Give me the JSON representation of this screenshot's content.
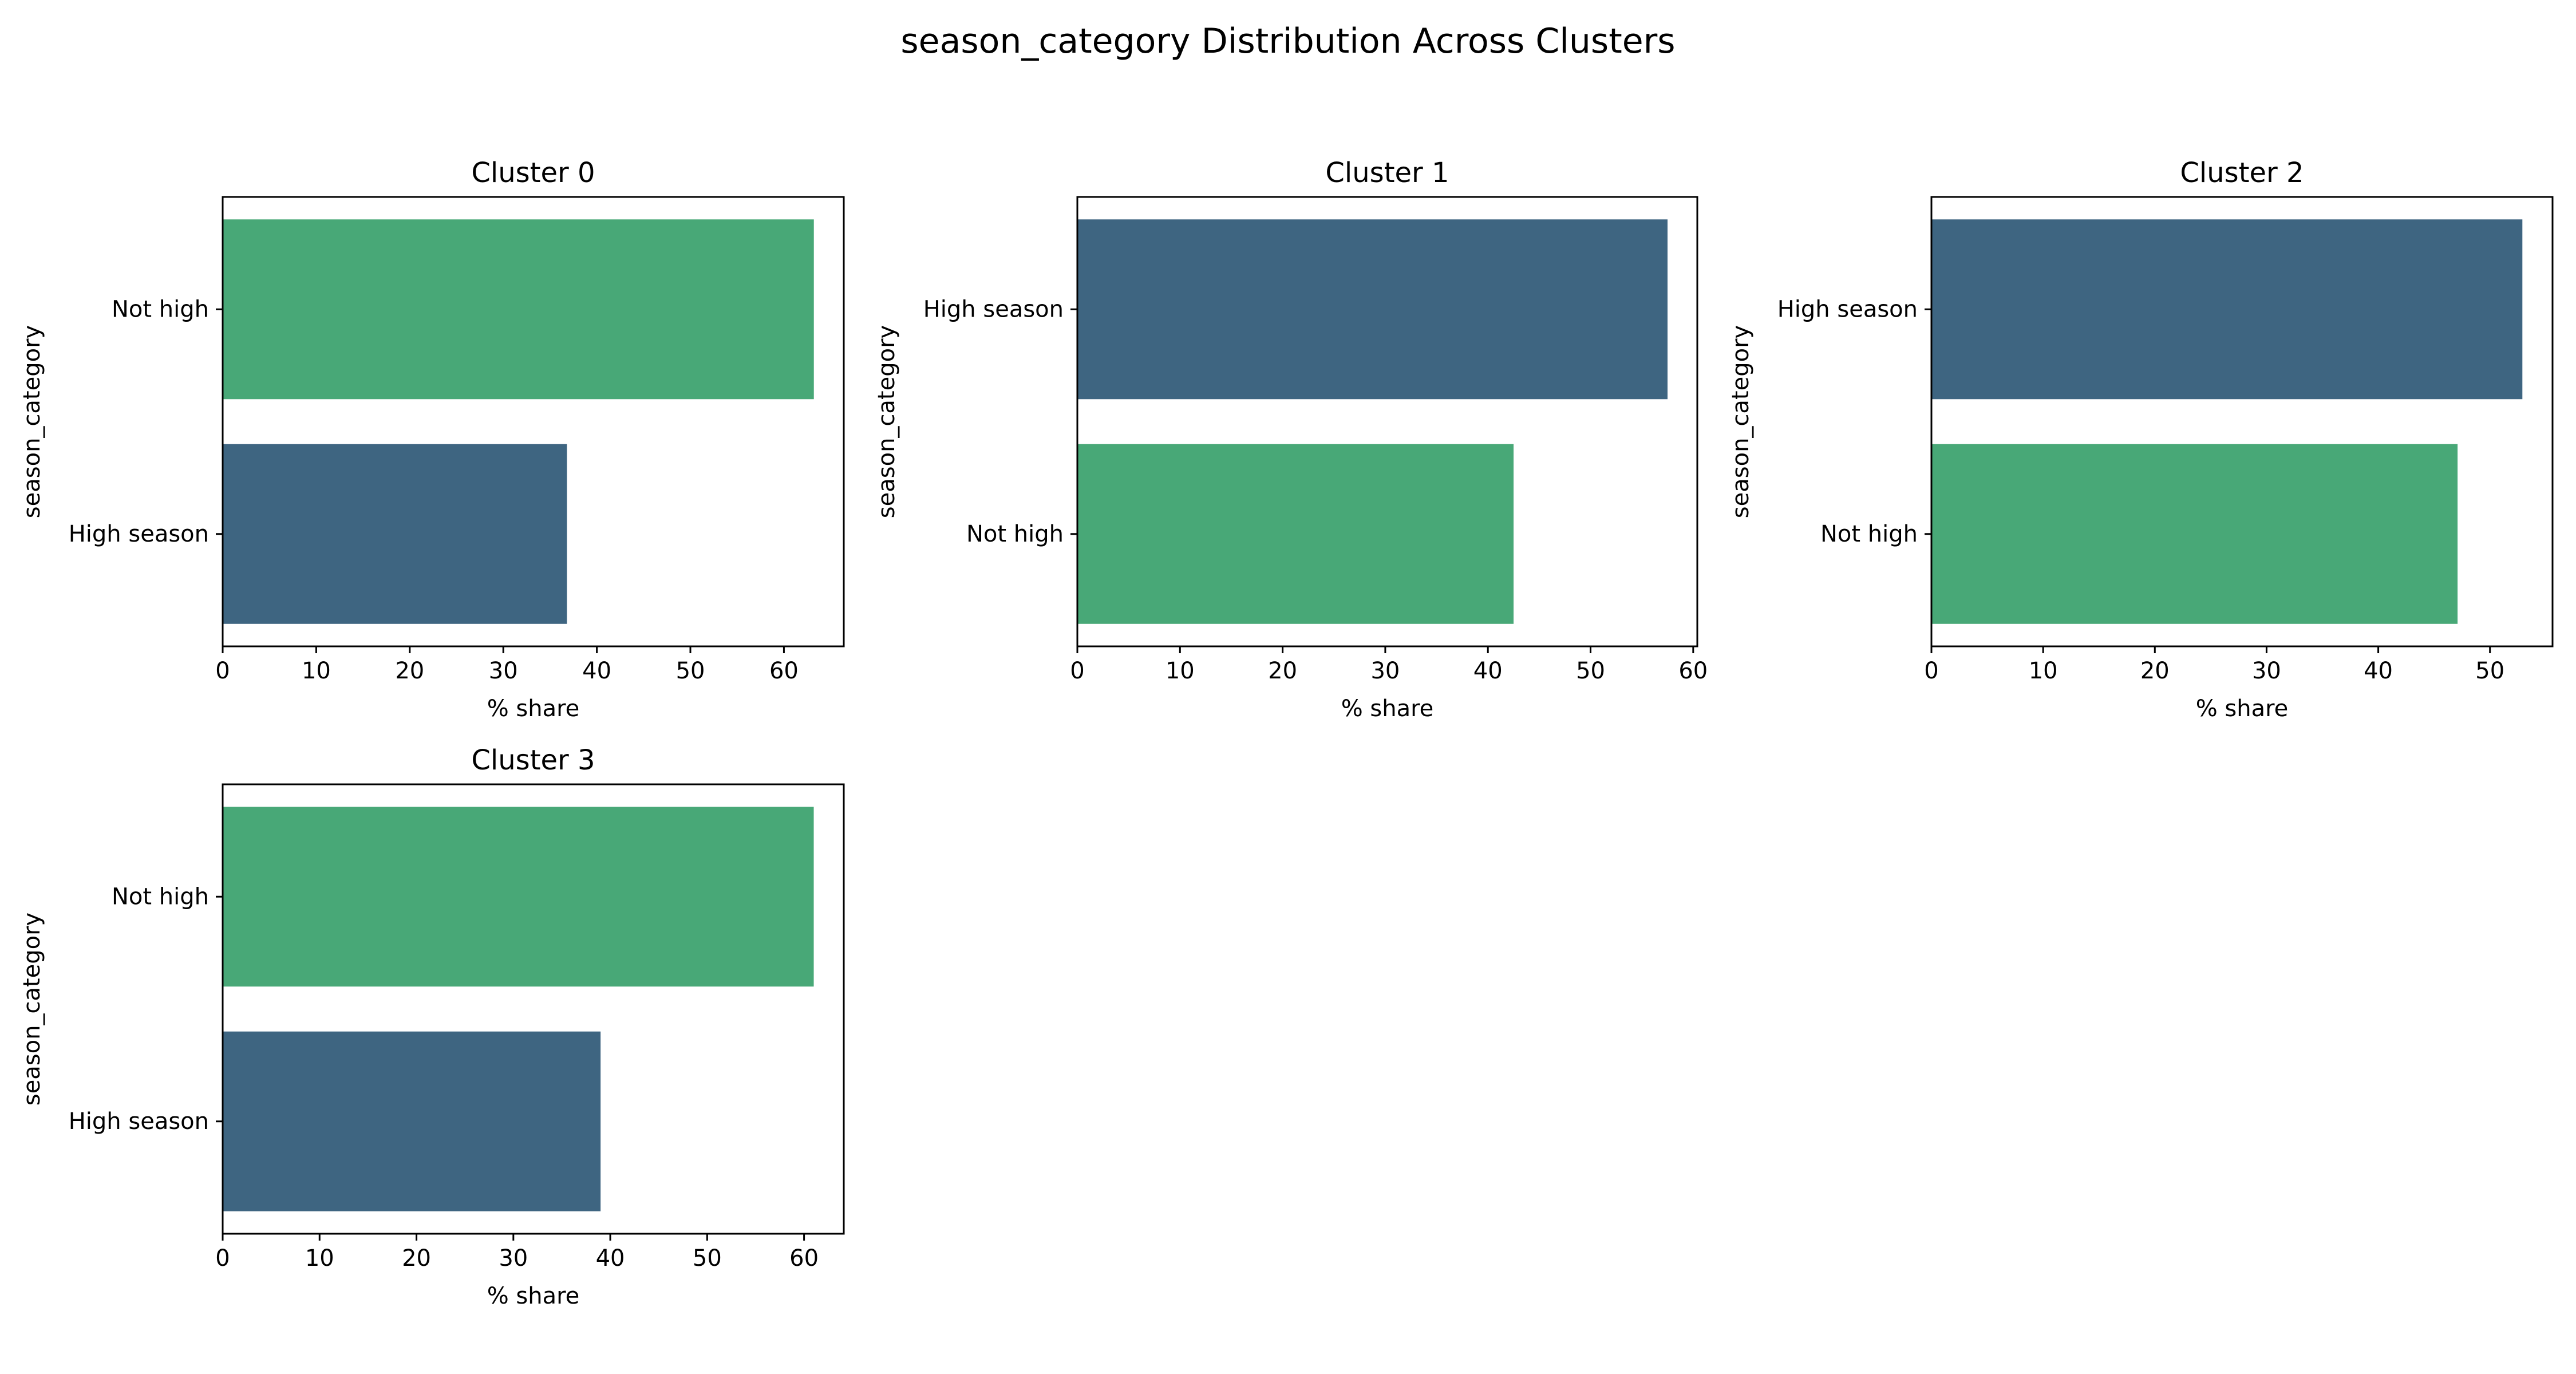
{
  "figure": {
    "title": "season_category Distribution Across Clusters"
  },
  "colors": {
    "High season": "#3e6581",
    "Not high": "#48a877",
    "axis": "#000000",
    "background": "#ffffff"
  },
  "chart_data": [
    {
      "type": "bar",
      "orientation": "horizontal",
      "title": "Cluster 0",
      "xlabel": "% share",
      "ylabel": "season_category",
      "categories": [
        "Not high",
        "High season"
      ],
      "values": [
        63.2,
        36.8
      ],
      "xlim": [
        0,
        66.4
      ],
      "xticks": [
        0,
        10,
        20,
        30,
        40,
        50,
        60
      ],
      "grid": false
    },
    {
      "type": "bar",
      "orientation": "horizontal",
      "title": "Cluster 1",
      "xlabel": "% share",
      "ylabel": "season_category",
      "categories": [
        "High season",
        "Not high"
      ],
      "values": [
        57.5,
        42.5
      ],
      "xlim": [
        0,
        60.4
      ],
      "xticks": [
        0,
        10,
        20,
        30,
        40,
        50,
        60
      ],
      "grid": false
    },
    {
      "type": "bar",
      "orientation": "horizontal",
      "title": "Cluster 2",
      "xlabel": "% share",
      "ylabel": "season_category",
      "categories": [
        "High season",
        "Not high"
      ],
      "values": [
        52.9,
        47.1
      ],
      "xlim": [
        0,
        55.6
      ],
      "xticks": [
        0,
        10,
        20,
        30,
        40,
        50
      ],
      "grid": false
    },
    {
      "type": "bar",
      "orientation": "horizontal",
      "title": "Cluster 3",
      "xlabel": "% share",
      "ylabel": "season_category",
      "categories": [
        "Not high",
        "High season"
      ],
      "values": [
        61.0,
        39.0
      ],
      "xlim": [
        0,
        64.1
      ],
      "xticks": [
        0,
        10,
        20,
        30,
        40,
        50,
        60
      ],
      "grid": false
    }
  ]
}
